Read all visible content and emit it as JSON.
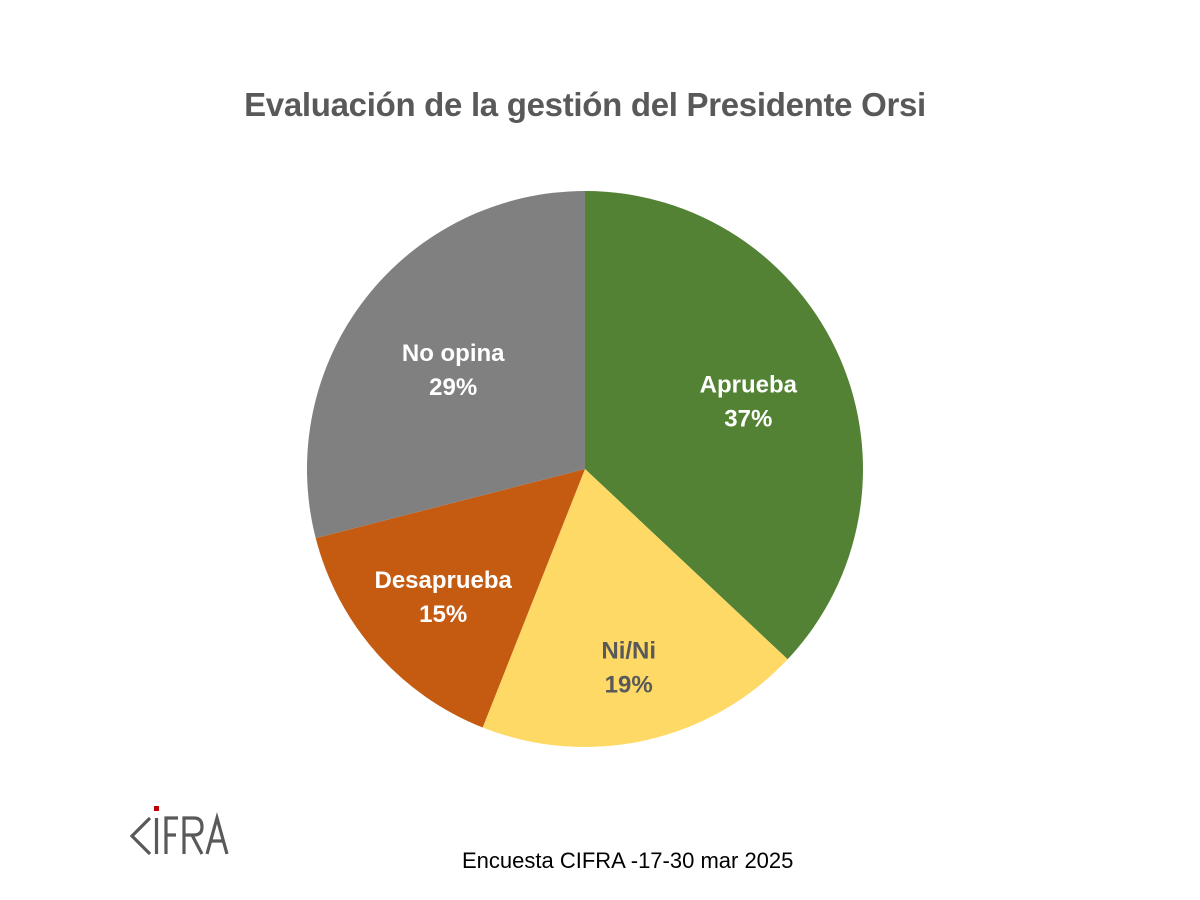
{
  "chart_data": {
    "type": "pie",
    "title": "Evaluación de la gestión del Presidente Orsi",
    "slices": [
      {
        "name": "Aprueba",
        "value": 37,
        "label": "37%",
        "color": "#548235",
        "label_color": "#ffffff"
      },
      {
        "name": "Ni/Ni",
        "value": 19,
        "label": "19%",
        "color": "#ffd966",
        "label_color": "#595959"
      },
      {
        "name": "Desaprueba",
        "value": 15,
        "label": "15%",
        "color": "#c55a11",
        "label_color": "#ffffff"
      },
      {
        "name": "No opina",
        "value": 29,
        "label": "29%",
        "color": "#808080",
        "label_color": "#ffffff"
      }
    ],
    "start": "12 o'clock",
    "direction": "clockwise",
    "legend": "none"
  },
  "footer": {
    "source": "Encuesta CIFRA -17-30 mar 2025"
  },
  "logo": {
    "text": "CIFRA",
    "accent_color": "#c00000",
    "color": "#595959"
  }
}
